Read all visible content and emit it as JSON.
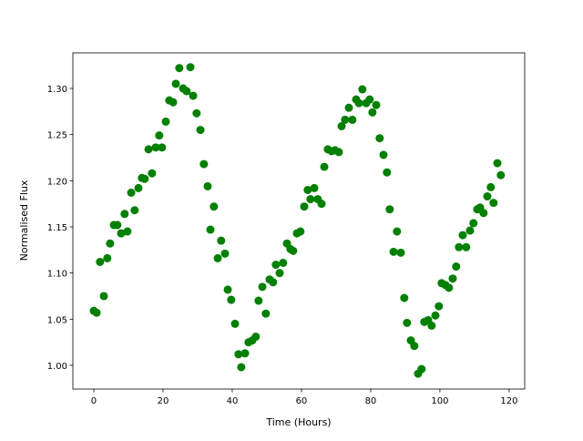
{
  "chart_data": {
    "type": "scatter",
    "x_label": "Time (Hours)",
    "y_label": "Normalised Flux",
    "color": "#008000",
    "xlim": [
      -6.05,
      124.5
    ],
    "ylim": [
      0.9743,
      1.3385
    ],
    "xticks": [
      0,
      20,
      40,
      60,
      80,
      100,
      120
    ],
    "yticks": [
      {
        "value": 1.0,
        "label": "1.00"
      },
      {
        "value": 1.05,
        "label": "1.05"
      },
      {
        "value": 1.1,
        "label": "1.10"
      },
      {
        "value": 1.15,
        "label": "1.15"
      },
      {
        "value": 1.2,
        "label": "1.20"
      },
      {
        "value": 1.25,
        "label": "1.25"
      },
      {
        "value": 1.3,
        "label": "1.30"
      }
    ],
    "x": [
      0,
      0.8,
      1.8,
      2.9,
      3.9,
      4.7,
      5.8,
      6.8,
      7.9,
      8.9,
      9.7,
      10.8,
      11.8,
      12.9,
      13.9,
      14.7,
      15.8,
      16.8,
      17.9,
      18.9,
      19.7,
      20.8,
      21.8,
      22.9,
      23.7,
      24.7,
      25.8,
      26.8,
      27.9,
      28.7,
      29.7,
      30.8,
      31.8,
      32.9,
      33.7,
      34.7,
      35.8,
      36.8,
      37.9,
      38.7,
      39.7,
      40.8,
      41.8,
      42.6,
      43.7,
      44.7,
      45.8,
      46.8,
      47.6,
      48.7,
      49.7,
      50.8,
      51.8,
      52.6,
      53.7,
      54.7,
      55.8,
      56.8,
      57.6,
      58.7,
      59.7,
      60.8,
      61.8,
      62.6,
      63.7,
      64.7,
      65.8,
      66.6,
      67.6,
      68.7,
      69.7,
      70.8,
      71.6,
      72.6,
      73.7,
      74.7,
      75.8,
      76.6,
      77.6,
      78.7,
      79.7,
      80.5,
      81.6,
      82.6,
      83.7,
      84.7,
      85.5,
      86.6,
      87.6,
      88.7,
      89.7,
      90.5,
      91.6,
      92.6,
      93.7,
      94.7,
      95.5,
      96.6,
      97.6,
      98.7,
      99.7,
      100.5,
      101.6,
      102.6,
      103.7,
      104.7,
      105.5,
      106.6,
      107.6,
      108.7,
      109.7,
      110.8,
      111.6,
      112.6,
      113.7,
      114.7,
      115.5,
      116.6,
      117.6
    ],
    "values": [
      1.059,
      1.057,
      1.112,
      1.075,
      1.116,
      1.132,
      1.152,
      1.152,
      1.143,
      1.164,
      1.145,
      1.187,
      1.168,
      1.192,
      1.203,
      1.202,
      1.234,
      1.208,
      1.236,
      1.249,
      1.236,
      1.264,
      1.287,
      1.285,
      1.305,
      1.322,
      1.3,
      1.297,
      1.323,
      1.292,
      1.273,
      1.255,
      1.218,
      1.194,
      1.147,
      1.172,
      1.116,
      1.135,
      1.121,
      1.082,
      1.071,
      1.045,
      1.012,
      0.998,
      1.013,
      1.025,
      1.027,
      1.031,
      1.07,
      1.085,
      1.056,
      1.093,
      1.09,
      1.109,
      1.1,
      1.111,
      1.132,
      1.126,
      1.124,
      1.143,
      1.145,
      1.172,
      1.19,
      1.18,
      1.192,
      1.18,
      1.175,
      1.215,
      1.234,
      1.232,
      1.233,
      1.231,
      1.259,
      1.266,
      1.279,
      1.266,
      1.288,
      1.284,
      1.299,
      1.284,
      1.288,
      1.274,
      1.282,
      1.246,
      1.228,
      1.209,
      1.169,
      1.123,
      1.145,
      1.122,
      1.073,
      1.046,
      1.027,
      1.021,
      0.991,
      0.996,
      1.047,
      1.049,
      1.043,
      1.054,
      1.064,
      1.089,
      1.087,
      1.084,
      1.094,
      1.107,
      1.128,
      1.141,
      1.128,
      1.146,
      1.154,
      1.169,
      1.171,
      1.165,
      1.183,
      1.193,
      1.176,
      1.219,
      1.206
    ]
  }
}
